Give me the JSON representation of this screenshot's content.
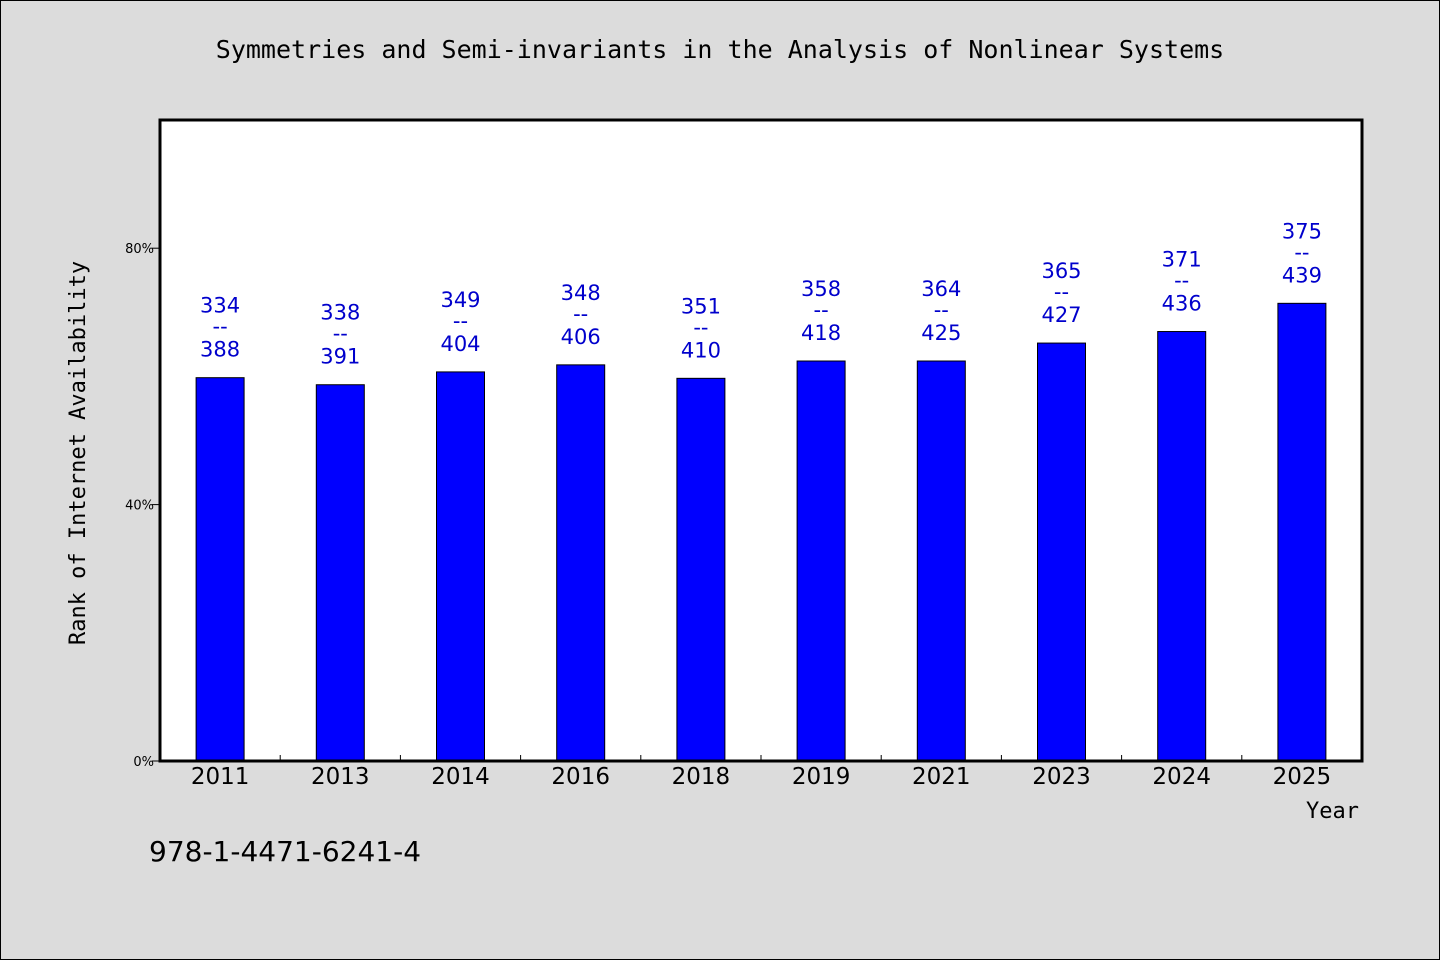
{
  "title": "Symmetries and Semi-invariants in the Analysis of Nonlinear Systems",
  "footer_text": "978-1-4471-6241-4",
  "colors": {
    "background": "#dcdcdc",
    "plot_background": "#ffffff",
    "bar": "#0000ff",
    "label": "#0000cc"
  },
  "chart_data": {
    "type": "bar",
    "title": "Symmetries and Semi-invariants in the Analysis of Nonlinear Systems",
    "xlabel": "Year",
    "ylabel": "Rank of Internet Availability",
    "ylim": [
      0,
      100
    ],
    "yticks": [
      {
        "value": 0,
        "label": "0%"
      },
      {
        "value": 40,
        "label": "40%"
      },
      {
        "value": 80,
        "label": "80%"
      }
    ],
    "grid": false,
    "legend": "none",
    "categories": [
      "2011",
      "2013",
      "2014",
      "2016",
      "2018",
      "2019",
      "2021",
      "2023",
      "2024",
      "2025"
    ],
    "values": [
      59.8,
      58.7,
      60.7,
      61.8,
      59.7,
      62.4,
      62.4,
      65.2,
      67.0,
      71.4
    ],
    "data_labels": [
      {
        "top": "334",
        "sep": "--",
        "bottom": "388"
      },
      {
        "top": "338",
        "sep": "--",
        "bottom": "391"
      },
      {
        "top": "349",
        "sep": "--",
        "bottom": "404"
      },
      {
        "top": "348",
        "sep": "--",
        "bottom": "406"
      },
      {
        "top": "351",
        "sep": "--",
        "bottom": "410"
      },
      {
        "top": "358",
        "sep": "--",
        "bottom": "418"
      },
      {
        "top": "364",
        "sep": "--",
        "bottom": "425"
      },
      {
        "top": "365",
        "sep": "--",
        "bottom": "427"
      },
      {
        "top": "371",
        "sep": "--",
        "bottom": "436"
      },
      {
        "top": "375",
        "sep": "--",
        "bottom": "439"
      }
    ]
  }
}
